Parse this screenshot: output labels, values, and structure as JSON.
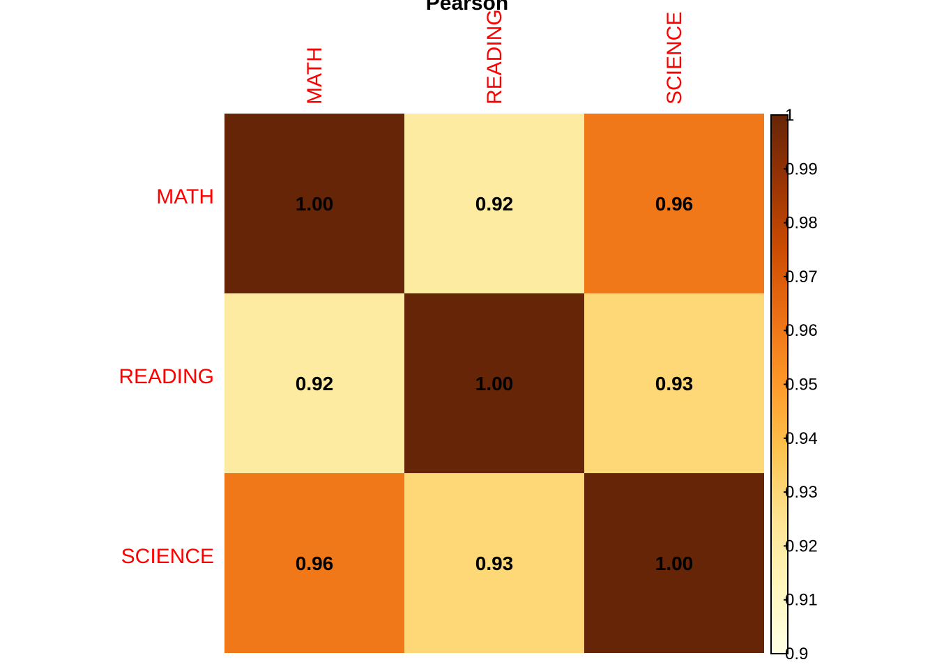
{
  "chart_data": {
    "type": "heatmap",
    "title": "Pearson",
    "rows": [
      "MATH",
      "READING",
      "SCIENCE"
    ],
    "columns": [
      "MATH",
      "READING",
      "SCIENCE"
    ],
    "values": [
      [
        1.0,
        0.92,
        0.96
      ],
      [
        0.92,
        1.0,
        0.93
      ],
      [
        0.96,
        0.93,
        1.0
      ]
    ],
    "value_labels": [
      [
        "1.00",
        "0.92",
        "0.96"
      ],
      [
        "0.92",
        "1.00",
        "0.93"
      ],
      [
        "0.96",
        "0.93",
        "1.00"
      ]
    ],
    "colorbar": {
      "range": [
        0.9,
        1
      ],
      "ticks": [
        {
          "value": 1,
          "label": "1"
        },
        {
          "value": 0.99,
          "label": "0.99"
        },
        {
          "value": 0.98,
          "label": "0.98"
        },
        {
          "value": 0.97,
          "label": "0.97"
        },
        {
          "value": 0.96,
          "label": "0.96"
        },
        {
          "value": 0.95,
          "label": "0.95"
        },
        {
          "value": 0.94,
          "label": "0.94"
        },
        {
          "value": 0.93,
          "label": "0.93"
        },
        {
          "value": 0.92,
          "label": "0.92"
        },
        {
          "value": 0.91,
          "label": "0.91"
        },
        {
          "value": 0.9,
          "label": "0.9"
        }
      ],
      "colorscale": [
        "#FFFFE5",
        "#FFF7BC",
        "#FEE391",
        "#FEC44F",
        "#FE9929",
        "#EC7014",
        "#CC4C02",
        "#993404",
        "#662506"
      ]
    },
    "label_color": "#FF0000",
    "legend": "right"
  }
}
